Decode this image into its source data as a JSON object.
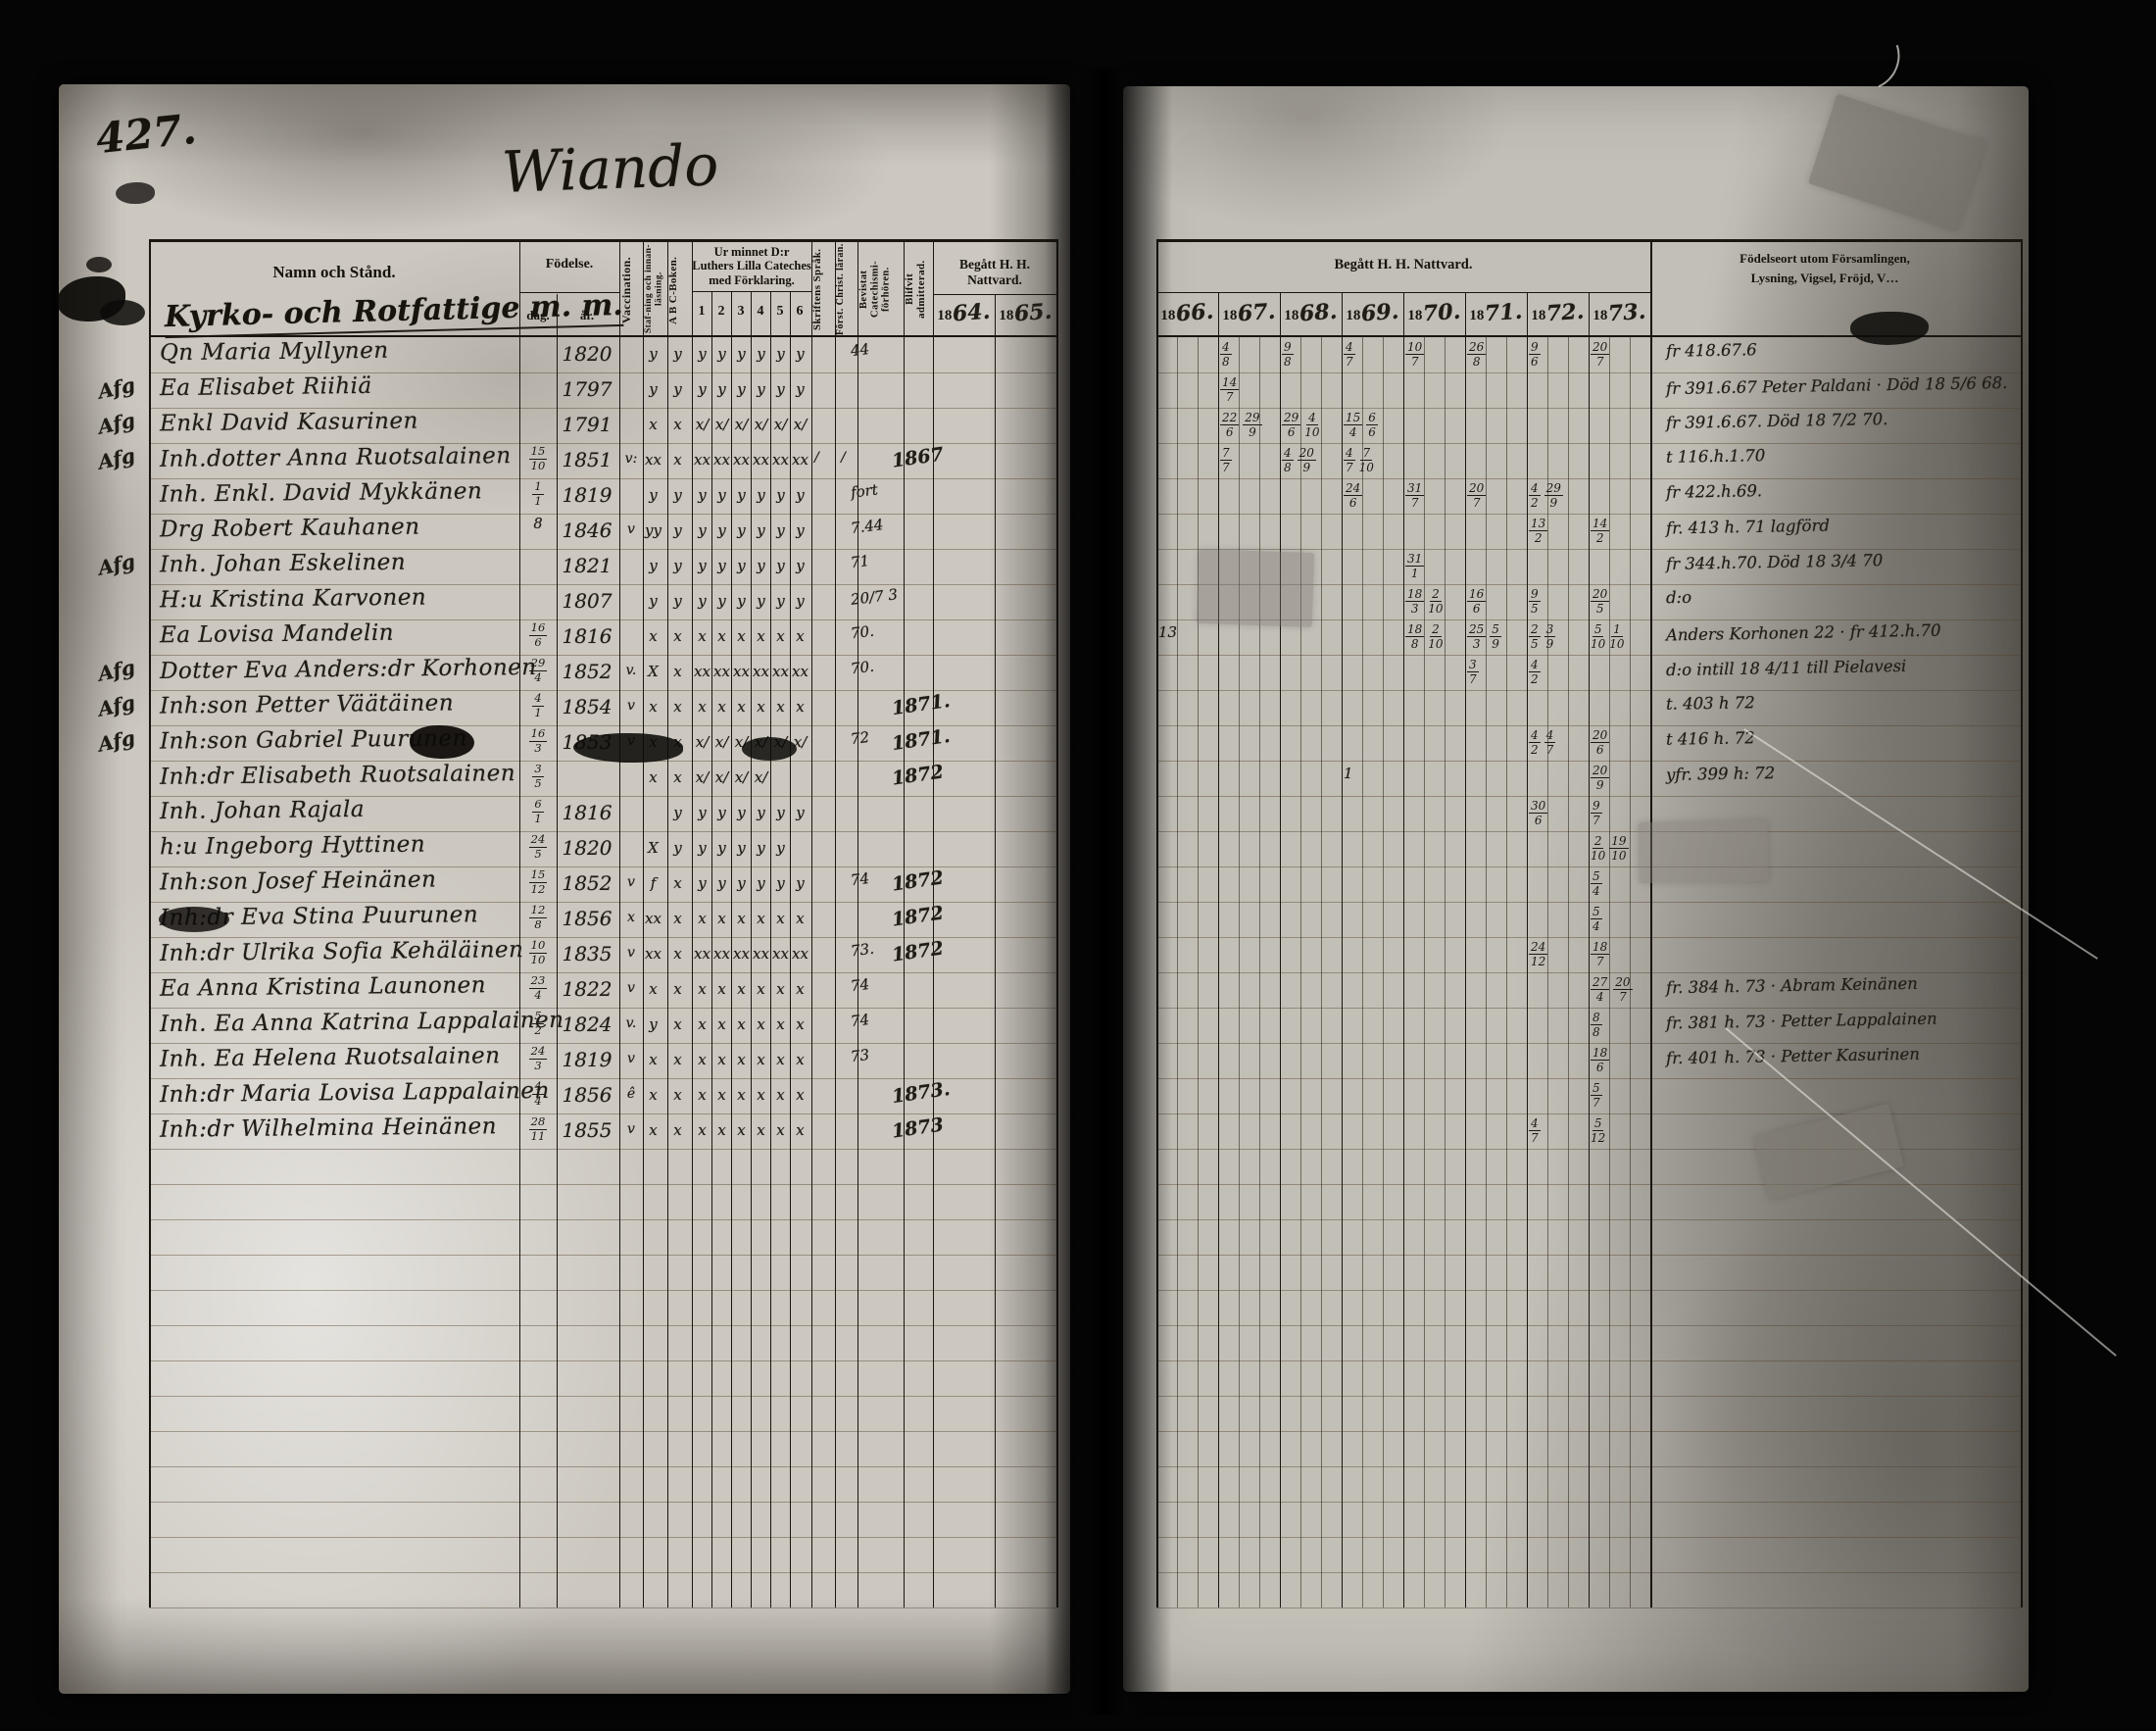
{
  "meta": {
    "page_number": "427.",
    "title": "Wiando"
  },
  "section_heading": "Kyrko- och Rotfattige m. m.",
  "left_header": {
    "name_col": "Namn och Stånd.",
    "fodelse": "Födelse.",
    "dag": "dag.",
    "ar": "år.",
    "vaccination": "Vaccination.",
    "stafning": "Staf-ning och innan-läsning.",
    "abc": "A B C-Boken.",
    "cateches_title": "Ur minnet D:r Luthers Lilla Cateches med Förklaring.",
    "cateches_cols": [
      "1",
      "2",
      "3",
      "4",
      "5",
      "6"
    ],
    "sprak": "Skriftens Språk.",
    "christ": "Först. Christ. läran.",
    "bevistat": "Bevistat Catechismi-förhören.",
    "admitterad": "Blifvit admitterad.",
    "nattvard": "Begått H. H. Nattvard.",
    "year_prefix": "18",
    "years": [
      "64.",
      "65."
    ]
  },
  "right_header": {
    "nattvard": "Begått H. H. Nattvard.",
    "year_prefix": "18",
    "years": [
      "66.",
      "67.",
      "68.",
      "69.",
      "70.",
      "71.",
      "72.",
      "73."
    ],
    "notes_line1": "Födelseort utom Församlingen,",
    "notes_line2": "Lysning, Vigsel, Fröjd, V…"
  },
  "rows": [
    {
      "name": "Qn Maria Myllynen",
      "year": "1820",
      "marks": [
        "y",
        "y",
        "y",
        "y",
        "y",
        "y",
        "y",
        "y"
      ],
      "catechism": "44",
      "communion": {
        "1867": "4/8",
        "1868": "9/8",
        "1869": "4/7",
        "1870": "10/7",
        "1871": "26/8",
        "1872": "9/6",
        "1873": "20/7"
      },
      "note": "fr 418.67.6"
    },
    {
      "margin": "Afg",
      "name": "Ea Elisabet Riihiä",
      "year": "1797",
      "marks": [
        "y",
        "y",
        "y",
        "y",
        "y",
        "y",
        "y",
        "y"
      ],
      "communion": {
        "1867": "14/7"
      },
      "note": "fr 391.6.67  Peter Paldani · Död 18 5/6 68."
    },
    {
      "margin": "Afg",
      "name": "Enkl David Kasurinen",
      "year": "1791",
      "marks": [
        "x",
        "x",
        "x/",
        "x/",
        "x/",
        "x/",
        "x/",
        "x/"
      ],
      "communion": {
        "1867": "22/6 29/9",
        "1868": "29/6 4/10",
        "1869": "15/4 6/6"
      },
      "note": "fr 391.6.67.  Död 18 7/2 70."
    },
    {
      "margin": "Afg",
      "name": "Inh.dotter Anna Ruotsalainen",
      "day": "15/10",
      "year": "1851",
      "vacc": "v:",
      "marks": [
        "xx",
        "x",
        "xx",
        "xx",
        "xx",
        "xx",
        "xx",
        "xx"
      ],
      "sprak": "/ /",
      "admitted": "1867",
      "communion": {
        "1867": "7/7",
        "1868": "4/8 20/9",
        "1869": "4/7 7/10"
      },
      "note": "t 116.h.1.70"
    },
    {
      "name": "Inh. Enkl. David Mykkänen",
      "day": "1/1",
      "year": "1819",
      "marks": [
        "y",
        "y",
        "y",
        "y",
        "y",
        "y",
        "y",
        "y"
      ],
      "catechism": "fort",
      "communion": {
        "1869": "24/6",
        "1870": "31/7",
        "1871": "20/7",
        "1872": "4/2 29/9"
      },
      "note": "fr 422.h.69."
    },
    {
      "name": "Drg Robert Kauhanen",
      "day": "8",
      "year": "1846",
      "vacc": "v",
      "marks": [
        "yy",
        "y",
        "y",
        "y",
        "y",
        "y",
        "y",
        "y"
      ],
      "catechism": "7.44",
      "communion": {
        "1872": "13/2",
        "1873": "14/2"
      },
      "note": "fr. 413 h. 71  lagförd"
    },
    {
      "margin": "Afg",
      "name": "Inh. Johan Eskelinen",
      "year": "1821",
      "marks": [
        "y",
        "y",
        "y",
        "y",
        "y",
        "y",
        "y",
        "y"
      ],
      "catechism": "71",
      "communion": {
        "1870": "31/1"
      },
      "note": "fr 344.h.70. Död 18 3/4 70"
    },
    {
      "name": "H:u Kristina Karvonen",
      "year": "1807",
      "marks": [
        "y",
        "y",
        "y",
        "y",
        "y",
        "y",
        "y",
        "y"
      ],
      "catechism": "20/7 3",
      "communion": {
        "1870": "18/3 2/10",
        "1871": "16/6",
        "1872": "9/5",
        "1873": "20/5"
      },
      "note": "d:o"
    },
    {
      "name": "Ea Lovisa Mandelin",
      "day": "16/6",
      "year": "1816",
      "marks": [
        "x",
        "x",
        "x",
        "x",
        "x",
        "x",
        "x",
        "x"
      ],
      "catechism": "70.",
      "communion": {
        "1866": "13",
        "1870": "18/8 2/10",
        "1871": "25/3 5/9",
        "1872": "2/5 3/9",
        "1873": "5/10 1/10"
      },
      "note": "Anders Korhonen 22 · fr 412.h.70"
    },
    {
      "margin": "Afg",
      "name": "Dotter Eva Anders:dr Korhonen",
      "day": "29/4",
      "year": "1852",
      "vacc": "v.",
      "marks": [
        "X",
        "x",
        "xx",
        "xx",
        "xx",
        "xx",
        "xx",
        "xx"
      ],
      "catechism": "70.",
      "communion": {
        "1871": "3/7",
        "1872": "4/2"
      },
      "note": "d:o  intill 18 4/11 till Pielavesi"
    },
    {
      "margin": "Afg",
      "name": "Inh:son Petter Väätäinen",
      "day": "4/1",
      "year": "1854",
      "vacc": "v",
      "marks": [
        "x",
        "x",
        "x",
        "x",
        "x",
        "x",
        "x",
        "x"
      ],
      "admitted": "1871.",
      "note": "t. 403 h 72"
    },
    {
      "margin": "Afg",
      "name": "Inh:son Gabriel Puurunen",
      "day": "16/3",
      "year": "1853",
      "vacc": "v",
      "marks": [
        "x",
        "x",
        "x/",
        "x/",
        "x/",
        "x/",
        "x/",
        "x/"
      ],
      "catechism": "72",
      "admitted": "1871.",
      "communion": {
        "1872": "4/2 4/7",
        "1873": "20/6"
      },
      "note": "t 416 h. 72"
    },
    {
      "name": "Inh:dr Elisabeth Ruotsalainen",
      "day": "3/5",
      "year": "",
      "marks": [
        "x",
        "x",
        "x/",
        "x/",
        "x/",
        "x/",
        "",
        ""
      ],
      "admitted": "1872",
      "communion": {
        "1869": "1",
        "1873": "20/9"
      },
      "note": "yfr. 399 h: 72"
    },
    {
      "name": "Inh. Johan Rajala",
      "day": "6/1",
      "year": "1816",
      "marks": [
        "",
        "y",
        "y",
        "y",
        "y",
        "y",
        "y",
        "y"
      ],
      "communion": {
        "1872": "30/6",
        "1873": "9/7"
      }
    },
    {
      "name": "h:u Ingeborg Hyttinen",
      "day": "24/5",
      "year": "1820",
      "marks": [
        "X",
        "y",
        "y",
        "y",
        "y",
        "y",
        "y",
        ""
      ],
      "communion": {
        "1873": "2/10 19/10"
      }
    },
    {
      "name": "Inh:son Josef Heinänen",
      "day": "15/12",
      "year": "1852",
      "vacc": "v",
      "marks": [
        "f",
        "x",
        "y",
        "y",
        "y",
        "y",
        "y",
        "y"
      ],
      "catechism": "74",
      "admitted": "1872",
      "communion": {
        "1873": "5/4"
      }
    },
    {
      "name": "Inh:dr Eva Stina Puurunen",
      "day": "12/8",
      "year": "1856",
      "vacc": "x",
      "marks": [
        "xx",
        "x",
        "x",
        "x",
        "x",
        "x",
        "x",
        "x"
      ],
      "admitted": "1872",
      "communion": {
        "1873": "5/4"
      }
    },
    {
      "name": "Inh:dr Ulrika Sofia Kehäläinen",
      "day": "10/10",
      "year": "1835",
      "vacc": "v",
      "marks": [
        "xx",
        "x",
        "xx",
        "xx",
        "xx",
        "xx",
        "xx",
        "xx"
      ],
      "catechism": "73.",
      "admitted": "1872",
      "communion": {
        "1872": "24/12",
        "1873": "18/7"
      }
    },
    {
      "name": "Ea Anna Kristina Launonen",
      "day": "23/4",
      "year": "1822",
      "vacc": "v",
      "marks": [
        "x",
        "x",
        "x",
        "x",
        "x",
        "x",
        "x",
        "x"
      ],
      "catechism": "74",
      "communion": {
        "1873": "27/4 20/7"
      },
      "note": "fr. 384 h. 73 · Abram Keinänen"
    },
    {
      "name": "Inh. Ea Anna Katrina Lappalainen",
      "day": "5/2",
      "year": "1824",
      "vacc": "v.",
      "marks": [
        "y",
        "x",
        "x",
        "x",
        "x",
        "x",
        "x",
        "x"
      ],
      "catechism": "74",
      "communion": {
        "1873": "8/8"
      },
      "note": "fr. 381 h. 73 · Petter Lappalainen"
    },
    {
      "name": "Inh. Ea Helena Ruotsalainen",
      "day": "24/3",
      "year": "1819",
      "vacc": "v",
      "marks": [
        "x",
        "x",
        "x",
        "x",
        "x",
        "x",
        "x",
        "x"
      ],
      "catechism": "73",
      "communion": {
        "1873": "18/6"
      },
      "note": "fr. 401 h. 73 · Petter Kasurinen"
    },
    {
      "name": "Inh:dr Maria Lovisa Lappalainen",
      "day": "4/4",
      "year": "1856",
      "vacc": "ê",
      "marks": [
        "x",
        "x",
        "x",
        "x",
        "x",
        "x",
        "x",
        "x"
      ],
      "admitted": "1873.",
      "communion": {
        "1873": "5/7"
      }
    },
    {
      "name": "Inh:dr Wilhelmina Heinänen",
      "day": "28/11",
      "year": "1855",
      "vacc": "v",
      "marks": [
        "x",
        "x",
        "x",
        "x",
        "x",
        "x",
        "x",
        "x"
      ],
      "admitted": "1873",
      "communion": {
        "1872": "4/7",
        "1873": "5/12"
      }
    }
  ]
}
